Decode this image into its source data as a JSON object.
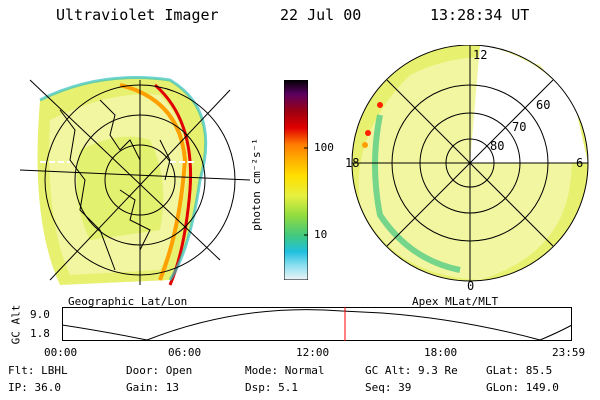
{
  "header": {
    "instrument": "Ultraviolet Imager",
    "date": "22 Jul 00",
    "time": "13:28:34 UT"
  },
  "left_panel": {
    "label": "Geographic Lat/Lon"
  },
  "right_panel": {
    "label": "Apex MLat/MLT",
    "mlt_labels": {
      "top": "12",
      "left": "18",
      "right": "6",
      "bottom": "0"
    },
    "lat_labels": [
      "60",
      "70",
      "80"
    ]
  },
  "colorbar": {
    "unit": "photon cm⁻²s⁻¹",
    "ticks": [
      "100",
      "10"
    ],
    "colors": [
      "#000000",
      "#5a0060",
      "#a00010",
      "#d00000",
      "#f03020",
      "#ff7a00",
      "#ffb000",
      "#ffe000",
      "#e6f040",
      "#a8e040",
      "#58d060",
      "#30c0a0",
      "#20c0e0",
      "#90e0f0",
      "#e6f2f6"
    ]
  },
  "altitude_plot": {
    "ylabel": "GC Alt",
    "yticks": [
      "9.0",
      "1.8"
    ],
    "xticks": [
      "00:00",
      "06:00",
      "12:00",
      "18:00",
      "23:59"
    ],
    "marker_color": "#ff0000"
  },
  "footer": {
    "row1": [
      {
        "label": "Flt:",
        "value": "LBHL"
      },
      {
        "label": "Door:",
        "value": "Open"
      },
      {
        "label": "Mode:",
        "value": "Normal"
      },
      {
        "label": "GC Alt:",
        "value": "9.3 Re"
      },
      {
        "label": "GLat:",
        "value": "85.5"
      }
    ],
    "row2": [
      {
        "label": "IP:",
        "value": "36.0"
      },
      {
        "label": "Gain:",
        "value": "13"
      },
      {
        "label": "Dsp:",
        "value": "5.1"
      },
      {
        "label": "Seq:",
        "value": "39"
      },
      {
        "label": "GLon:",
        "value": "149.0"
      }
    ]
  }
}
